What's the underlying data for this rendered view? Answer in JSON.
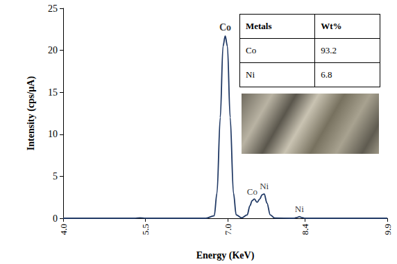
{
  "chart_data": {
    "type": "line",
    "xlabel": "Energy (KeV)",
    "ylabel": "Intensity (cps/µA)",
    "color": "#1f3864",
    "x": [
      4.0,
      5.3,
      5.4,
      5.5,
      6.6,
      6.75,
      6.8,
      6.86,
      6.91,
      6.95,
      6.99,
      7.04,
      7.1,
      7.15,
      7.25,
      7.35,
      7.4,
      7.44,
      7.48,
      7.53,
      7.58,
      7.62,
      7.66,
      7.71,
      7.77,
      7.85,
      8.2,
      8.26,
      8.3,
      8.34,
      8.4,
      9.9
    ],
    "values": [
      0,
      0,
      0.05,
      0,
      0,
      0.3,
      3.0,
      12.0,
      20.5,
      21.7,
      20.5,
      12.0,
      3.0,
      0.4,
      0.05,
      0.4,
      1.5,
      2.1,
      2.3,
      1.9,
      2.3,
      2.8,
      2.9,
      1.8,
      0.4,
      0.03,
      0,
      0.1,
      0.2,
      0.1,
      0,
      0
    ],
    "xlim": [
      4.0,
      9.9
    ],
    "xticks": [
      {
        "value": 4.0,
        "label": "4.0"
      },
      5.5,
      {
        "value": 7.0,
        "label": "7.0"
      },
      8.4,
      9.9
    ],
    "ylim": [
      0,
      25
    ],
    "yticks": [
      0,
      5,
      10,
      15,
      20,
      25
    ],
    "grid": false,
    "annotations": [
      {
        "text": "Co",
        "x": 6.95,
        "y": 22.0
      },
      {
        "text": "Co",
        "x": 7.44,
        "y": 2.5
      },
      {
        "text": "Ni",
        "x": 7.66,
        "y": 3.1
      },
      {
        "text": "Ni",
        "x": 8.3,
        "y": 0.4
      }
    ],
    "table": {
      "header": [
        "Metals",
        "Wt%"
      ],
      "rows": [
        [
          "Co",
          "93.2"
        ],
        [
          "Ni",
          "6.8"
        ]
      ]
    }
  }
}
